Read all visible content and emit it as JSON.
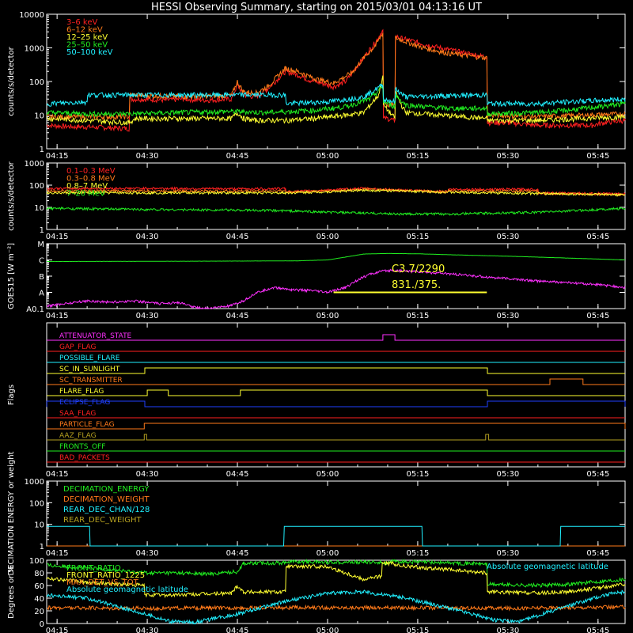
{
  "title": "HESSI Observing Summary, starting on 2015/03/01 04:13:16 UT",
  "time_ticks": [
    "04:15",
    "04:30",
    "04:45",
    "05:00",
    "05:15",
    "05:30",
    "05:45"
  ],
  "colors": {
    "red": "#ff2020",
    "orange": "#ff7a1a",
    "yellow": "#ffff30",
    "green": "#20ee20",
    "cyan": "#20f0ff",
    "magenta": "#ff30ff",
    "blue": "#2040ff",
    "olive": "#b5a020",
    "white": "#ffffff"
  },
  "chart_data": [
    {
      "id": "panel1",
      "type": "line",
      "ylabel": "counts/s/detector",
      "y_scale": "log",
      "yticks": [
        "1",
        "10",
        "100",
        "1000",
        "10000"
      ],
      "ylim": [
        1,
        10000
      ],
      "xlim_minutes": [
        13.27,
        59.5
      ],
      "legend_placement": "top-left",
      "series": [
        {
          "name": "3–6 keV",
          "color": "red",
          "x": [
            13.3,
            18,
            20,
            27,
            27.1,
            30,
            33,
            36,
            40,
            44,
            45,
            46,
            48,
            50,
            53,
            55,
            57,
            59,
            61,
            63,
            65,
            66,
            67,
            68,
            69.2,
            69.3,
            70,
            71,
            71.2,
            71.3,
            73,
            76,
            80,
            85,
            86.5,
            86.6,
            90,
            95,
            100,
            104,
            106,
            109.5
          ],
          "y": [
            5,
            4.5,
            4.5,
            4,
            30,
            30,
            28,
            30,
            28,
            30,
            80,
            40,
            35,
            60,
            200,
            160,
            110,
            90,
            70,
            100,
            300,
            500,
            900,
            1500,
            3400,
            8,
            8,
            7,
            7,
            2200,
            1800,
            1300,
            900,
            600,
            550,
            6,
            6,
            5,
            5,
            5,
            6,
            7
          ]
        },
        {
          "name": "6–12 keV",
          "color": "orange",
          "x": [
            13.3,
            20,
            27,
            27.1,
            30,
            36,
            44,
            45,
            46,
            48,
            50,
            53,
            55,
            58,
            61,
            64,
            66,
            68,
            69.2,
            69.3,
            70,
            71.2,
            71.3,
            76,
            80,
            86.5,
            86.6,
            95,
            109.5
          ],
          "y": [
            9,
            9,
            9,
            40,
            38,
            36,
            38,
            100,
            50,
            45,
            70,
            250,
            200,
            120,
            90,
            180,
            500,
            1200,
            2800,
            25,
            20,
            20,
            2000,
            1000,
            700,
            500,
            10,
            9,
            11
          ]
        },
        {
          "name": "12–25 keV",
          "color": "yellow",
          "x": [
            13.3,
            20,
            27,
            28,
            35,
            44,
            45,
            46,
            48,
            53,
            58,
            63,
            66,
            68.5,
            69.2,
            69.3,
            71.2,
            71.3,
            72,
            73,
            86.5,
            86.6,
            95,
            109.5
          ],
          "y": [
            8,
            7,
            6,
            8,
            8,
            8,
            12,
            8,
            7,
            7,
            8,
            10,
            12,
            40,
            150,
            20,
            8,
            50,
            25,
            12,
            8,
            7,
            7,
            9
          ]
        },
        {
          "name": "25–50 keV",
          "color": "green",
          "x": [
            13.3,
            20,
            27,
            35,
            44,
            50,
            58,
            63,
            67,
            69.2,
            69.3,
            71.2,
            71.3,
            73,
            80,
            86.5,
            86.6,
            95,
            100,
            109.5
          ],
          "y": [
            12,
            11,
            11,
            12,
            13,
            12,
            14,
            18,
            30,
            70,
            25,
            18,
            40,
            20,
            16,
            16,
            11,
            12,
            14,
            22
          ]
        },
        {
          "name": "50–100 keV",
          "color": "cyan",
          "x": [
            13.3,
            20,
            20.1,
            40,
            53,
            53.1,
            60,
            66,
            69.2,
            69.3,
            71.2,
            71.3,
            73,
            80,
            86.5,
            86.6,
            95,
            100,
            109.5
          ],
          "y": [
            22,
            25,
            40,
            40,
            40,
            22,
            25,
            35,
            80,
            30,
            25,
            60,
            35,
            38,
            40,
            22,
            22,
            25,
            30
          ]
        }
      ]
    },
    {
      "id": "panel2",
      "type": "line",
      "ylabel": "counts/s/detector",
      "y_scale": "log",
      "yticks": [
        "1",
        "10",
        "100",
        "1000"
      ],
      "ylim": [
        1,
        1000
      ],
      "xlim_minutes": [
        13.27,
        59.5
      ],
      "legend_placement": "top-left",
      "series": [
        {
          "name": "0.1–0.3 MeV",
          "color": "red",
          "x": [
            13.3,
            30,
            45,
            53,
            53.1,
            60,
            66,
            72,
            80,
            80.1,
            95,
            95.1,
            109.5
          ],
          "y": [
            70,
            72,
            68,
            70,
            50,
            60,
            72,
            60,
            50,
            65,
            65,
            45,
            40
          ]
        },
        {
          "name": "0.3–0.8 MeV",
          "color": "orange",
          "x": [
            13.3,
            30,
            45,
            53,
            53.1,
            60,
            66,
            72,
            80,
            80.1,
            95,
            95.1,
            109.5
          ],
          "y": [
            55,
            55,
            54,
            55,
            48,
            55,
            65,
            58,
            50,
            55,
            55,
            42,
            38
          ]
        },
        {
          "name": "0.8–7 MeV",
          "color": "yellow",
          "x": [
            13.3,
            30,
            45,
            53,
            60,
            66,
            72,
            80,
            95,
            109.5
          ],
          "y": [
            45,
            45,
            45,
            45,
            50,
            60,
            55,
            48,
            42,
            36
          ]
        },
        {
          "name": "7–20 MeV",
          "color": "green",
          "x": [
            13.3,
            30,
            45,
            53,
            60,
            66,
            72,
            80,
            95,
            109.5
          ],
          "y": [
            9,
            8,
            7.5,
            7,
            6,
            5.5,
            5,
            5,
            6,
            9
          ]
        }
      ]
    },
    {
      "id": "panel3",
      "type": "line",
      "ylabel": "GOES15 [W m⁻²]",
      "y_scale": "log",
      "yticks": [
        "A0.1",
        "A",
        "B",
        "C",
        "M"
      ],
      "ylim": [
        1e-09,
        1e-05
      ],
      "xlim_minutes": [
        13.27,
        59.5
      ],
      "annotations": [
        "C3.7/2290",
        "831./375."
      ],
      "series": [
        {
          "name": "long",
          "color": "magenta",
          "x": [
            13.3,
            16,
            20,
            24,
            28,
            32,
            35,
            38,
            40,
            44,
            46,
            48,
            51,
            54,
            57,
            60,
            63,
            65,
            67,
            69,
            71,
            73,
            75,
            80,
            85,
            90,
            95,
            100,
            105,
            109.5
          ],
          "y": [
            1.4e-09,
            2e-09,
            3e-09,
            2.5e-09,
            3e-09,
            2e-09,
            2.5e-09,
            1.2e-09,
            1e-09,
            1.5e-09,
            3e-09,
            9e-09,
            2e-08,
            1.5e-08,
            1.3e-08,
            1e-08,
            2e-08,
            6e-08,
            1.3e-07,
            2e-07,
            2.3e-07,
            2.1e-07,
            1.9e-07,
            1.4e-07,
            1e-07,
            7e-08,
            5e-08,
            4e-08,
            3e-08,
            2e-08
          ]
        },
        {
          "name": "short",
          "color": "green",
          "x": [
            13.3,
            30,
            45,
            55,
            60,
            63,
            66,
            70,
            75,
            80,
            90,
            100,
            109.5
          ],
          "y": [
            8e-07,
            8.2e-07,
            8.5e-07,
            8.8e-07,
            1e-06,
            1.5e-06,
            2.3e-06,
            2.5e-06,
            2.4e-06,
            2.1e-06,
            1.7e-06,
            1.3e-06,
            1e-06
          ]
        }
      ],
      "segment": {
        "color": "yellow",
        "x": [
          61,
          86.5
        ],
        "y": 1e-08
      }
    },
    {
      "id": "panel4",
      "type": "flags",
      "ylabel": "Flags",
      "rows": [
        {
          "name": "ATTENUATOR_STATE",
          "color": "magenta",
          "on": [
            [
              69.2,
              71.2
            ]
          ]
        },
        {
          "name": "GAP_FLAG",
          "color": "red",
          "on": []
        },
        {
          "name": "POSSIBLE_FLARE",
          "color": "cyan",
          "on": []
        },
        {
          "name": "SC_IN_SUNLIGHT",
          "color": "yellow",
          "on": [
            [
              29.6,
              86.6
            ]
          ]
        },
        {
          "name": "SC_TRANSMITTER",
          "color": "orange",
          "on": [
            [
              97,
              102.5
            ]
          ]
        },
        {
          "name": "FLARE_FLAG",
          "color": "yellow",
          "on": [
            [
              30,
              33.5
            ],
            [
              45.5,
              86.6
            ]
          ]
        },
        {
          "name": "ECLIPSE_FLAG",
          "color": "blue",
          "on": [
            [
              13.3,
              29.6
            ],
            [
              86.6,
              109.5
            ]
          ]
        },
        {
          "name": "SAA_FLAG",
          "color": "red",
          "on": []
        },
        {
          "name": "PARTICLE_FLAG",
          "color": "orange",
          "on": [
            [
              29.5,
              109.5
            ]
          ]
        },
        {
          "name": "AAZ_FLAG",
          "color": "olive",
          "on": [
            [
              29.5,
              29.9
            ],
            [
              86.3,
              86.8
            ]
          ]
        },
        {
          "name": "FRONTS_OFF",
          "color": "green",
          "on": []
        },
        {
          "name": "BAD_PACKETS",
          "color": "red",
          "on": []
        }
      ]
    },
    {
      "id": "panel5",
      "type": "line",
      "ylabel": "DECIMATION ENERGY or weight",
      "y_scale": "log",
      "yticks": [
        "1",
        "10",
        "100",
        "1000"
      ],
      "ylim": [
        1,
        1000
      ],
      "xlim_minutes": [
        13.27,
        59.5
      ],
      "legend_placement": "top-left",
      "series": [
        {
          "name": "DECIMATION_ENERGY",
          "color": "green",
          "x": [],
          "y": []
        },
        {
          "name": "DECIMATION_WEIGHT",
          "color": "orange",
          "x": [
            13.3,
            109.5
          ],
          "y": [
            1,
            1
          ]
        },
        {
          "name": "REAR_DEC_CHAN/128",
          "color": "cyan",
          "x": [
            13.3,
            20.4,
            20.5,
            52.7,
            52.8,
            75.7,
            75.8,
            98.7,
            98.8,
            109.5
          ],
          "y": [
            8,
            8,
            1,
            1,
            8,
            8,
            1,
            1,
            8,
            8
          ]
        },
        {
          "name": "REAR_DEC_WEIGHT",
          "color": "olive",
          "x": [],
          "y": []
        }
      ]
    },
    {
      "id": "panel6",
      "type": "line",
      "ylabel": "Degrees or %",
      "y_scale": "linear",
      "yticks": [
        "0",
        "20",
        "40",
        "60",
        "80",
        "100"
      ],
      "ylim": [
        0,
        100
      ],
      "xlim_minutes": [
        13.27,
        59.5
      ],
      "legend_placement": "top-left",
      "right_label": "Absolute geomagnetic latitude",
      "series": [
        {
          "name": "FRONT_RATIO",
          "color": "green",
          "x": [
            13.3,
            20,
            27,
            30,
            35,
            40,
            45,
            46,
            53,
            53.1,
            60,
            69,
            69.1,
            71,
            80,
            86.5,
            86.6,
            95,
            100,
            109.5
          ],
          "y": [
            92,
            88,
            82,
            80,
            80,
            78,
            82,
            95,
            96,
            98,
            97,
            97,
            95,
            98,
            96,
            94,
            62,
            60,
            62,
            70
          ]
        },
        {
          "name": "FRONT_RATIO_1225",
          "color": "yellow",
          "x": [
            13.3,
            20,
            29.5,
            29.6,
            35,
            44,
            45,
            46,
            53,
            53.1,
            60,
            63,
            66,
            69,
            69.1,
            71,
            71.1,
            80,
            86.5,
            86.6,
            95,
            100,
            109.5
          ],
          "y": [
            72,
            65,
            60,
            45,
            45,
            48,
            60,
            50,
            50,
            90,
            90,
            80,
            70,
            75,
            95,
            95,
            92,
            85,
            80,
            50,
            48,
            50,
            62
          ]
        },
        {
          "name": "MAX_DET_VS_TOT",
          "color": "orange",
          "x": [
            13.3,
            30,
            50,
            70,
            90,
            109.5
          ],
          "y": [
            25,
            24,
            25,
            25,
            24,
            26
          ]
        },
        {
          "name": "Absolute geomagnetic latitude",
          "color": "cyan",
          "x": [
            13.3,
            20,
            27,
            34,
            38,
            45,
            53,
            60,
            66,
            72,
            80,
            88,
            92,
            99,
            106,
            109.5
          ],
          "y": [
            45,
            40,
            22,
            3,
            2,
            15,
            35,
            48,
            50,
            42,
            25,
            5,
            3,
            25,
            45,
            50
          ]
        }
      ]
    }
  ]
}
